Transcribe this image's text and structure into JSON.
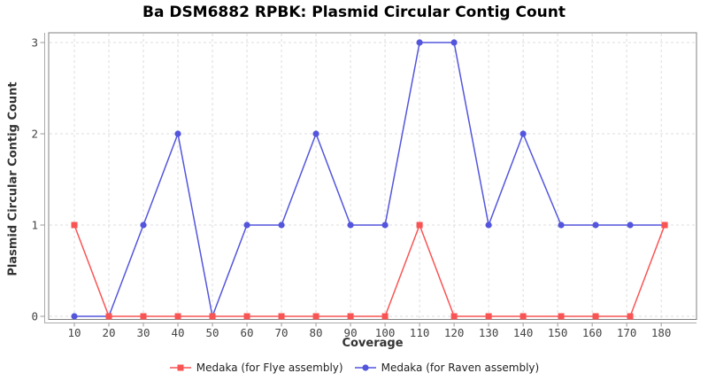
{
  "chart_data": {
    "type": "line",
    "title": "Ba DSM6882 RPBK: Plasmid Circular Contig Count",
    "xlabel": "Coverage",
    "ylabel": "Plasmid Circular Contig Count",
    "x": [
      10,
      20,
      30,
      40,
      50,
      60,
      70,
      80,
      90,
      100,
      110,
      120,
      130,
      140,
      151,
      161,
      171,
      181
    ],
    "x_tick_labels": [
      "10",
      "20",
      "30",
      "40",
      "50",
      "60",
      "70",
      "80",
      "90",
      "100",
      "110",
      "120",
      "130",
      "140",
      "150",
      "160",
      "170",
      "180"
    ],
    "y_tick_labels": [
      "0",
      "1",
      "2",
      "3"
    ],
    "ylim": [
      0,
      3
    ],
    "grid": true,
    "grid_style": "dashed",
    "legend_position": "bottom-center",
    "series": [
      {
        "name": "Medaka (for Flye assembly)",
        "color": "#f95454",
        "marker": "square",
        "values": [
          1,
          0,
          0,
          0,
          0,
          0,
          0,
          0,
          0,
          0,
          1,
          0,
          0,
          0,
          0,
          0,
          0,
          1
        ]
      },
      {
        "name": "Medaka (for Raven assembly)",
        "color": "#5355dc",
        "marker": "circle",
        "values": [
          0,
          0,
          1,
          2,
          0,
          1,
          1,
          2,
          1,
          1,
          3,
          3,
          1,
          2,
          1,
          1,
          1,
          1
        ]
      }
    ],
    "colors": {
      "grid": "#dcdcdc",
      "plot_border": "#808080",
      "axis_line": "#aaaaaa",
      "tick": "#999999",
      "tick_label": "#444444",
      "axis_label": "#333333",
      "title": "#000000",
      "background": "#ffffff"
    }
  }
}
